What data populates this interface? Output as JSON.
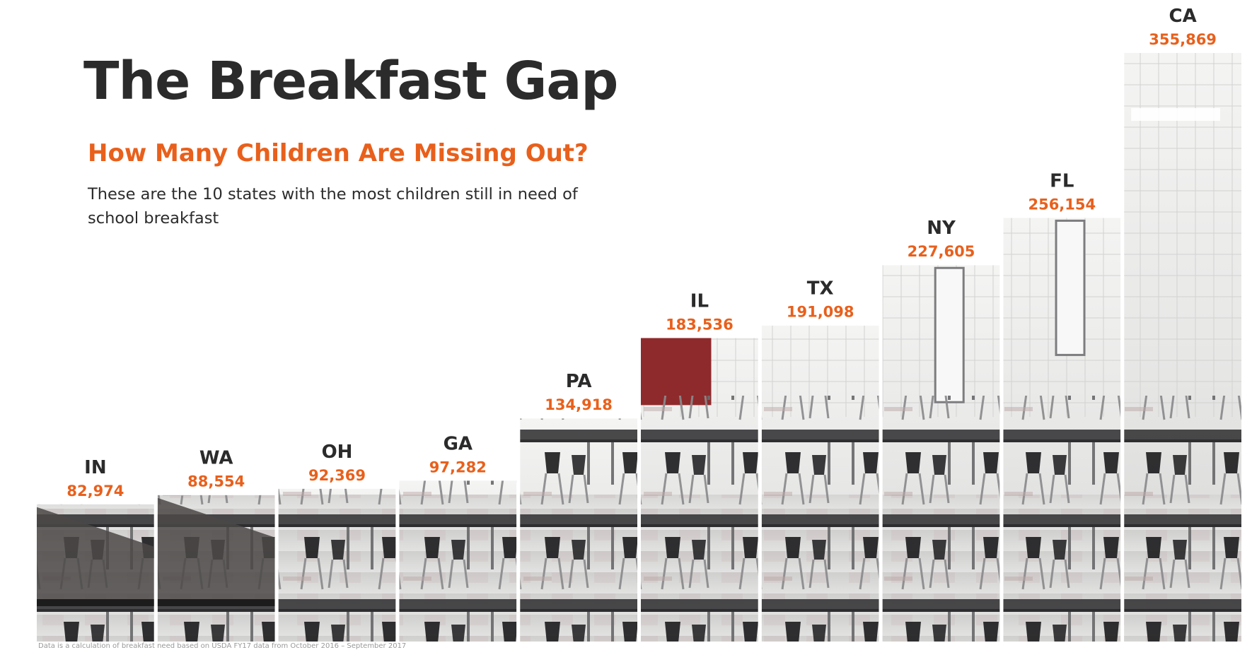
{
  "header": {
    "title": "The Breakfast Gap",
    "subtitle": "How Many Children Are Missing Out?",
    "description": "These are the 10 states with the most children still in need of school breakfast"
  },
  "footnote": "Data is a calculation of breakfast need based on USDA FY17 data from October 2016 – September 2017",
  "colors": {
    "title": "#2b2b2b",
    "accent": "#e8601c",
    "floor": "#d8d8d8",
    "wall": "#ebebea",
    "table": "#3a3a3c",
    "chair": "#1f1f21",
    "door": "#8e2a2c"
  },
  "chart_data": {
    "type": "bar",
    "title": "The Breakfast Gap",
    "subtitle": "How Many Children Are Missing Out?",
    "categories": [
      "IN",
      "WA",
      "OH",
      "GA",
      "PA",
      "IL",
      "TX",
      "NY",
      "FL",
      "CA"
    ],
    "values": [
      82974,
      88554,
      92369,
      97282,
      134918,
      183536,
      191098,
      227605,
      256154,
      355869
    ],
    "value_labels": [
      "82,974",
      "88,554",
      "92,369",
      "97,282",
      "134,918",
      "183,536",
      "191,098",
      "227,605",
      "256,154",
      "355,869"
    ],
    "bar_fill": "photo of a school cafeteria with tables and chairs",
    "grid": false,
    "legend": "none"
  }
}
